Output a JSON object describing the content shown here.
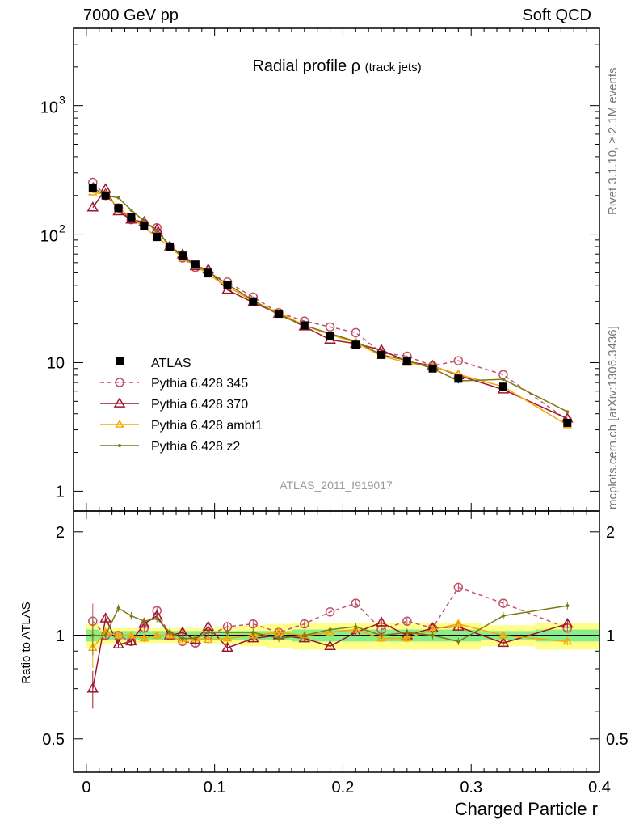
{
  "header": {
    "left": "7000 GeV pp",
    "right": "Soft QCD"
  },
  "side": {
    "rivet": "Rivet 3.1.10, ≥ 2.1M events",
    "mcplots": "mcplots.cern.ch [arXiv:1306.3436]"
  },
  "chart_data": {
    "type": "line",
    "title": "Radial profile",
    "title_symbol": "ρ",
    "title_sub": "(track jets)",
    "analysis_id": "ATLAS_2011_I919017",
    "xlabel": "Charged Particle r",
    "ratio_ylabel": "Ratio to ATLAS",
    "xlim": [
      -0.01,
      0.4
    ],
    "ylim": [
      0.7,
      4000
    ],
    "ratio_ylim": [
      0.4,
      2.3
    ],
    "log_y": true,
    "x_ticks": [
      "0",
      "0.1",
      "0.2",
      "0.3",
      "0.4"
    ],
    "y_ticks": [
      "1",
      "10",
      "10^2",
      "10^3"
    ],
    "ratio_ticks": [
      "0.5",
      "1",
      "2"
    ],
    "legend_position": "lower-left",
    "x": [
      0.005,
      0.015,
      0.025,
      0.035,
      0.045,
      0.055,
      0.065,
      0.075,
      0.085,
      0.095,
      0.11,
      0.13,
      0.15,
      0.17,
      0.19,
      0.21,
      0.23,
      0.25,
      0.27,
      0.29,
      0.325,
      0.375
    ],
    "data": {
      "name": "ATLAS",
      "values": [
        230,
        200,
        160,
        135,
        115,
        95,
        80,
        68,
        58,
        50,
        40,
        30,
        24,
        19.5,
        16.2,
        13.8,
        11.5,
        10.2,
        9.0,
        7.5,
        6.5,
        3.4
      ],
      "errors": [
        20,
        15,
        10,
        8,
        6,
        5,
        4,
        3.5,
        3,
        2.5,
        2,
        1.5,
        1.2,
        1.0,
        0.8,
        0.7,
        0.6,
        0.5,
        0.5,
        0.6,
        0.4,
        0.2
      ]
    },
    "series": [
      {
        "name": "Pythia 6.428 345",
        "color": "#c0506a",
        "dashed": true,
        "marker": "circle",
        "ratio": [
          1.1,
          1.0,
          1.0,
          0.96,
          1.05,
          1.18,
          1.0,
          0.96,
          0.95,
          1.0,
          1.06,
          1.08,
          1.02,
          1.08,
          1.17,
          1.24,
          1.04,
          1.1,
          1.05,
          1.38,
          1.24,
          1.05
        ]
      },
      {
        "name": "Pythia 6.428 370",
        "color": "#9e1530",
        "dashed": false,
        "marker": "triangle",
        "ratio": [
          0.7,
          1.12,
          0.94,
          0.96,
          1.08,
          1.14,
          1.0,
          1.02,
          0.97,
          1.06,
          0.92,
          0.98,
          1.0,
          0.98,
          0.93,
          1.02,
          1.09,
          1.0,
          1.05,
          1.06,
          0.95,
          1.08
        ]
      },
      {
        "name": "Pythia 6.428 ambt1",
        "color": "#f5a800",
        "dashed": false,
        "marker": "triangle",
        "ratio": [
          0.92,
          1.02,
          1.0,
          1.0,
          0.98,
          1.0,
          1.0,
          0.96,
          0.98,
          0.97,
          0.98,
          1.0,
          1.02,
          1.0,
          1.02,
          1.04,
          0.98,
          0.98,
          1.04,
          1.08,
          1.0,
          0.96
        ]
      },
      {
        "name": "Pythia 6.428 z2",
        "color": "#7a7a10",
        "dashed": false,
        "marker": "dot",
        "ratio": [
          1.0,
          1.0,
          1.2,
          1.14,
          1.1,
          1.12,
          1.02,
          0.98,
          0.98,
          1.02,
          1.02,
          1.02,
          0.98,
          1.0,
          1.04,
          1.06,
          1.0,
          1.02,
          1.0,
          0.96,
          1.14,
          1.22
        ]
      }
    ]
  }
}
